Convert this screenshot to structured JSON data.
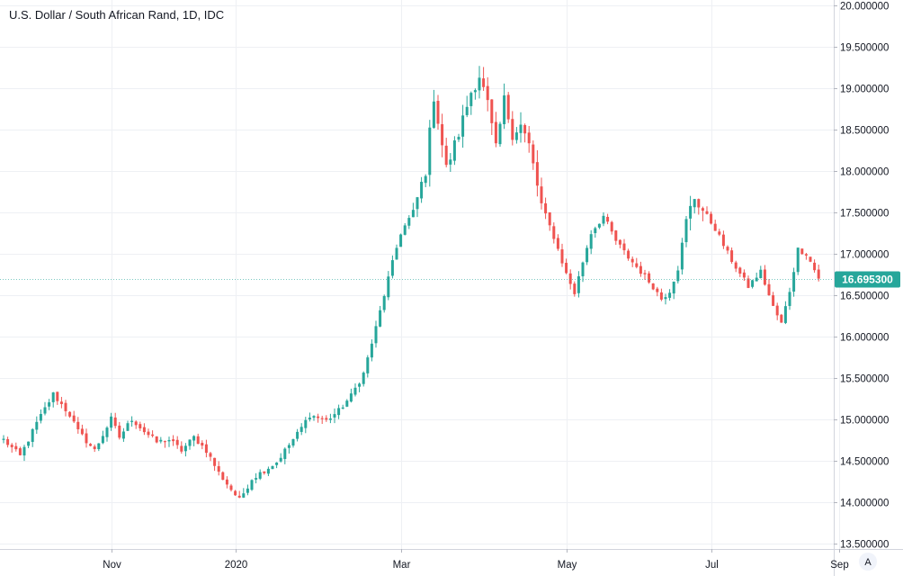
{
  "chart_data": {
    "type": "candlestick",
    "title": "U.S. Dollar / South African Rand, 1D, IDC",
    "current_price": "16.695300",
    "current_value": 16.6953,
    "y_ticks": [
      "13.500000",
      "14.000000",
      "14.500000",
      "15.000000",
      "15.500000",
      "16.000000",
      "16.500000",
      "17.000000",
      "17.500000",
      "18.000000",
      "18.500000",
      "19.000000",
      "19.500000",
      "20.000000"
    ],
    "y_tick_values": [
      13.5,
      14.0,
      14.5,
      15.0,
      15.5,
      16.0,
      16.5,
      17.0,
      17.5,
      18.0,
      18.5,
      19.0,
      19.5,
      20.0
    ],
    "ylim": [
      13.43,
      20.06
    ],
    "x_labels": [
      "Nov",
      "2020",
      "Mar",
      "May",
      "Jul",
      "Sep"
    ],
    "x_label_bars": [
      26,
      56,
      96,
      136,
      171,
      202
    ],
    "bar_count": 198,
    "grid": true,
    "up_color": "#26a69a",
    "down_color": "#ef5350",
    "series_anchors": [
      [
        0,
        14.75
      ],
      [
        4,
        14.55
      ],
      [
        8,
        14.95
      ],
      [
        12,
        15.3
      ],
      [
        16,
        15.05
      ],
      [
        18,
        14.85
      ],
      [
        22,
        14.62
      ],
      [
        26,
        15.0
      ],
      [
        28,
        14.78
      ],
      [
        31,
        15.0
      ],
      [
        34,
        14.85
      ],
      [
        37,
        14.72
      ],
      [
        40,
        14.75
      ],
      [
        43,
        14.62
      ],
      [
        46,
        14.78
      ],
      [
        49,
        14.62
      ],
      [
        52,
        14.35
      ],
      [
        55,
        14.15
      ],
      [
        57,
        14.02
      ],
      [
        60,
        14.28
      ],
      [
        63,
        14.38
      ],
      [
        66,
        14.48
      ],
      [
        68,
        14.62
      ],
      [
        71,
        14.82
      ],
      [
        74,
        15.05
      ],
      [
        78,
        14.98
      ],
      [
        81,
        15.1
      ],
      [
        84,
        15.28
      ],
      [
        87,
        15.55
      ],
      [
        90,
        16.1
      ],
      [
        93,
        16.7
      ],
      [
        96,
        17.25
      ],
      [
        99,
        17.5
      ],
      [
        102,
        18.0
      ],
      [
        104,
        18.9
      ],
      [
        107,
        18.02
      ],
      [
        110,
        18.45
      ],
      [
        113,
        18.95
      ],
      [
        115,
        19.15
      ],
      [
        117,
        18.8
      ],
      [
        119,
        18.25
      ],
      [
        121,
        18.85
      ],
      [
        123,
        18.45
      ],
      [
        125,
        18.55
      ],
      [
        127,
        18.3
      ],
      [
        130,
        17.58
      ],
      [
        133,
        17.2
      ],
      [
        136,
        16.75
      ],
      [
        138,
        16.52
      ],
      [
        140,
        16.9
      ],
      [
        142,
        17.25
      ],
      [
        145,
        17.45
      ],
      [
        148,
        17.15
      ],
      [
        151,
        16.95
      ],
      [
        154,
        16.78
      ],
      [
        157,
        16.6
      ],
      [
        159,
        16.45
      ],
      [
        161,
        16.55
      ],
      [
        163,
        16.82
      ],
      [
        165,
        17.4
      ],
      [
        167,
        17.68
      ],
      [
        169,
        17.52
      ],
      [
        172,
        17.3
      ],
      [
        175,
        17.0
      ],
      [
        178,
        16.75
      ],
      [
        180,
        16.6
      ],
      [
        183,
        16.78
      ],
      [
        186,
        16.35
      ],
      [
        188,
        16.15
      ],
      [
        190,
        16.55
      ],
      [
        192,
        17.05
      ],
      [
        194,
        17.0
      ],
      [
        197,
        16.7
      ]
    ]
  }
}
